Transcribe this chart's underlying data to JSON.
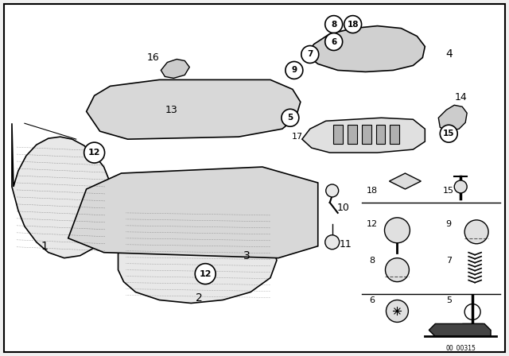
{
  "bg_color": "#f0f0f0",
  "border_color": "#000000",
  "line_color": "#000000",
  "catalog_number": "00_00315"
}
